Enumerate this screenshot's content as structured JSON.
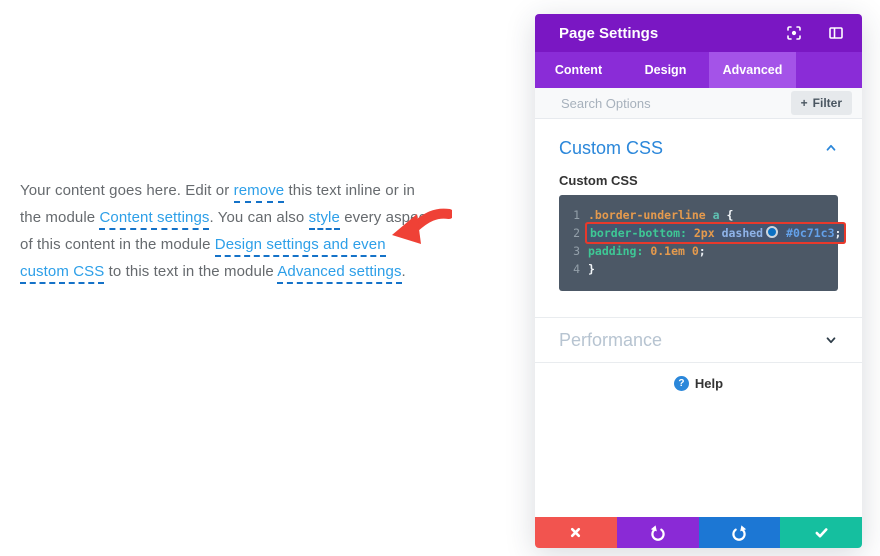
{
  "colors": {
    "header_purple": "#7a17c3",
    "tabbar_purple": "#8a2cd7",
    "active_tab_purple": "#a453e8",
    "accent_blue": "#2b87da",
    "link_blue": "#2d9fe8",
    "link_underline_blue": "#1472c8",
    "editor_background": "#4c5866",
    "annotation_red": "#e8392b",
    "arrow_red": "#ef4136",
    "css_swatch_blue": "#0c71c3"
  },
  "content_paragraph": {
    "segments": [
      {
        "type": "text",
        "text": "Your content goes here. Edit or "
      },
      {
        "type": "link",
        "text": "remove"
      },
      {
        "type": "text",
        "text": " this text inline or in the module "
      },
      {
        "type": "link",
        "text": "Content settings"
      },
      {
        "type": "text",
        "text": ". You can also "
      },
      {
        "type": "link",
        "text": "style"
      },
      {
        "type": "text",
        "text": " every aspect of this content in the module "
      },
      {
        "type": "link",
        "text": "Design settings and even custom CSS"
      },
      {
        "type": "text",
        "text": " to this text in the module "
      },
      {
        "type": "link",
        "text": "Advanced settings"
      },
      {
        "type": "text",
        "text": "."
      }
    ]
  },
  "panel": {
    "title": "Page Settings",
    "tabs": [
      {
        "label": "Content",
        "active": false
      },
      {
        "label": "Design",
        "active": false
      },
      {
        "label": "Advanced",
        "active": true
      }
    ],
    "search": {
      "placeholder": "Search Options",
      "filter_plus": "+",
      "filter_label": "Filter"
    },
    "custom_css": {
      "section_title": "Custom CSS",
      "field_label": "Custom CSS",
      "swatch_color": "#0c71c3",
      "code_lines": [
        {
          "number": "1",
          "highlight": false,
          "tokens": [
            [
              "sel",
              ".border-underline"
            ],
            [
              "tag",
              " a"
            ],
            [
              "brace",
              " {"
            ]
          ]
        },
        {
          "number": "2",
          "highlight": true,
          "tokens": [
            [
              "prop",
              "border-bottom:"
            ],
            [
              "num",
              " 2px"
            ],
            [
              "val",
              " dashed"
            ],
            [
              "swatch",
              ""
            ],
            [
              "hex",
              " #0c71c3"
            ],
            [
              "plain",
              ";"
            ]
          ]
        },
        {
          "number": "3",
          "highlight": false,
          "tokens": [
            [
              "prop",
              "padding:"
            ],
            [
              "num",
              " 0.1em"
            ],
            [
              "num",
              " 0"
            ],
            [
              "plain",
              ";"
            ]
          ]
        },
        {
          "number": "4",
          "highlight": false,
          "tokens": [
            [
              "brace",
              "}"
            ]
          ]
        }
      ]
    },
    "performance": {
      "title": "Performance"
    },
    "help": {
      "icon_glyph": "?",
      "label": "Help"
    },
    "footer_buttons": [
      {
        "name": "close-button",
        "icon": "close-icon",
        "color": "#f2544f"
      },
      {
        "name": "undo-button",
        "icon": "undo-icon",
        "color": "#8a2ad6"
      },
      {
        "name": "redo-button",
        "icon": "redo-icon",
        "color": "#1c77d4"
      },
      {
        "name": "save-button",
        "icon": "check-icon",
        "color": "#15bf9f"
      }
    ]
  }
}
